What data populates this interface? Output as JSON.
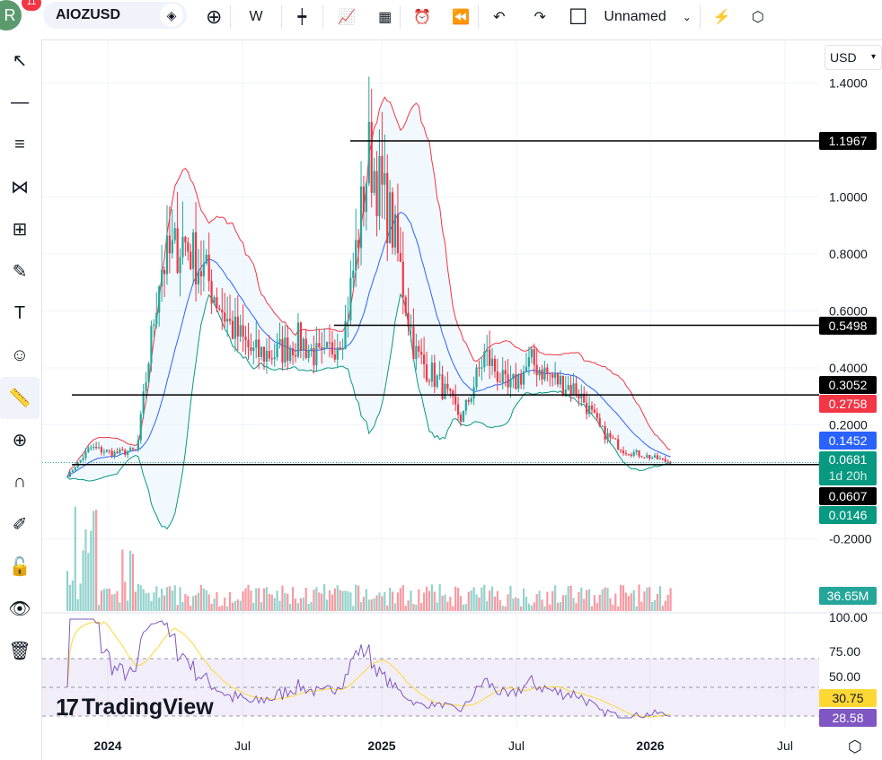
{
  "toolbar": {
    "avatar": "R",
    "notifications": "11",
    "symbol": "AIOZUSD",
    "interval": "W",
    "layout_name": "Unnamed"
  },
  "currency": "USD",
  "logo": "TradingView",
  "price_axis": [
    "1.4000",
    "1.0000",
    "0.8000",
    "0.6000",
    "0.4000",
    "0.2000",
    "-0.2000"
  ],
  "rsi_axis": [
    "100.00",
    "75.00",
    "50.00"
  ],
  "time_axis": [
    "2024",
    "Jul",
    "2025",
    "Jul",
    "2026",
    "Jul"
  ],
  "labels": {
    "hline1": "1.1967",
    "hline2": "0.5498",
    "hline3": "0.3052",
    "bb_upper": "0.2758",
    "bb_basis": "0.1452",
    "last_price": "0.0681",
    "countdown": "1d 20h",
    "hline4": "0.0607",
    "bb_lower": "0.0146",
    "volume": "36.65M",
    "rsi_ma": "30.75",
    "rsi": "28.58"
  },
  "colors": {
    "up": "#26a69a",
    "down": "#f23645",
    "bb_upper": "#f23645",
    "bb_basis": "#2962ff",
    "bb_lower": "#089981",
    "rsi": "#7e57c2",
    "rsi_ma": "#fdd835"
  },
  "chart_data": {
    "type": "candlestick",
    "interval": "W",
    "series_monthly_close_approx": [
      [
        "2023-11",
        0.02
      ],
      [
        "2023-12",
        0.12
      ],
      [
        "2024-01",
        0.1
      ],
      [
        "2024-02",
        0.11
      ],
      [
        "2024-03",
        0.75
      ],
      [
        "2024-04",
        0.85
      ],
      [
        "2024-05",
        0.72
      ],
      [
        "2024-06",
        0.55
      ],
      [
        "2024-07",
        0.45
      ],
      [
        "2024-08",
        0.45
      ],
      [
        "2024-09",
        0.5
      ],
      [
        "2024-10",
        0.42
      ],
      [
        "2024-11",
        0.55
      ],
      [
        "2024-12",
        1.15
      ],
      [
        "2025-01",
        0.9
      ],
      [
        "2025-02",
        0.45
      ],
      [
        "2025-03",
        0.35
      ],
      [
        "2025-04",
        0.22
      ],
      [
        "2025-05",
        0.45
      ],
      [
        "2025-06",
        0.32
      ],
      [
        "2025-07",
        0.42
      ],
      [
        "2025-08",
        0.36
      ],
      [
        "2025-09",
        0.32
      ],
      [
        "2025-10",
        0.18
      ],
      [
        "2025-11",
        0.11
      ],
      [
        "2025-12",
        0.09
      ],
      [
        "2026-01",
        0.068
      ]
    ],
    "horizontal_lines": [
      1.1967,
      0.5498,
      0.3052,
      0.0607
    ],
    "ylim": [
      -0.3,
      1.45
    ],
    "indicators": [
      "Bollinger Bands 20",
      "Volume",
      "RSI 14"
    ]
  }
}
